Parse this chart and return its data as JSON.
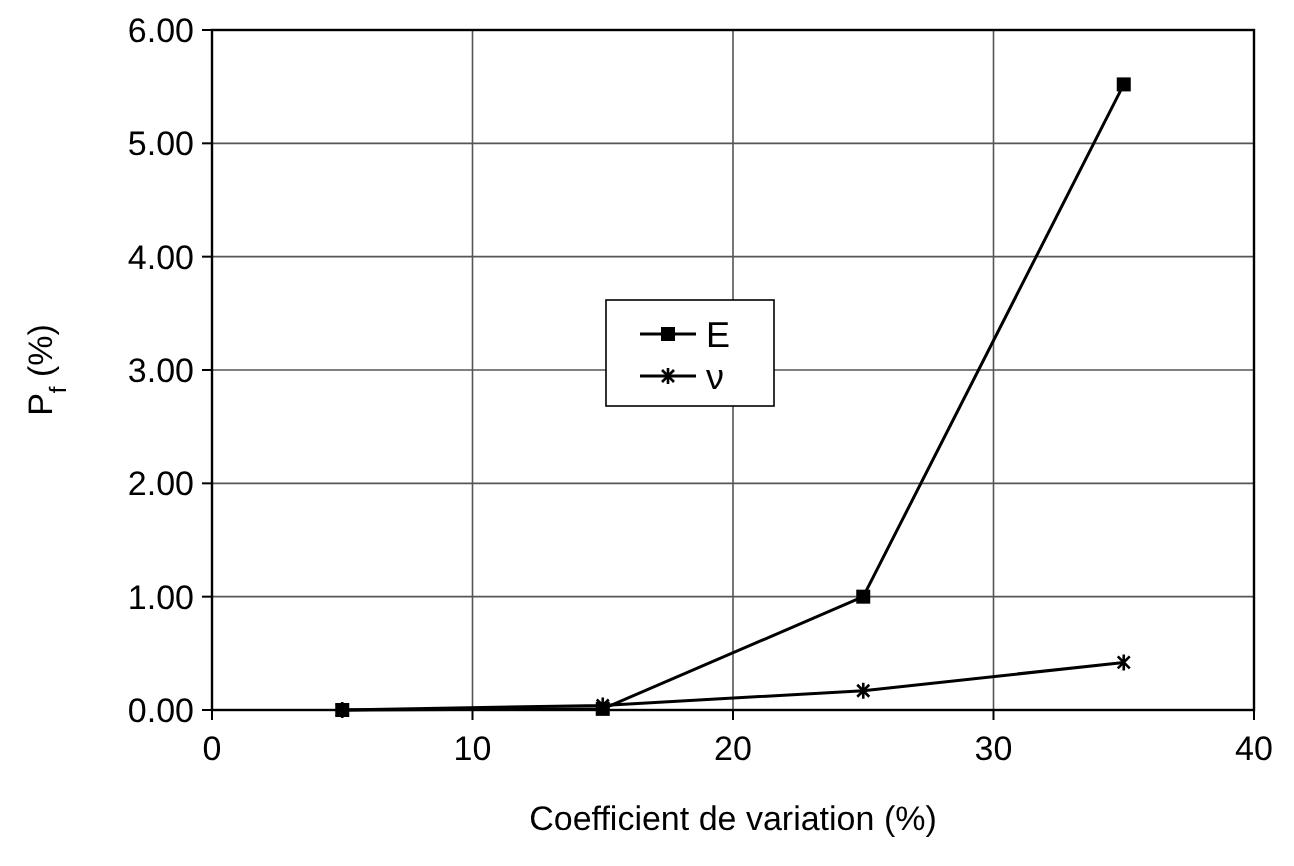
{
  "chart_data": {
    "type": "line",
    "xlabel": "Coefficient de variation (%)",
    "ylabel": "P$_{f}$ (%)",
    "x": [
      5,
      15,
      25,
      35
    ],
    "series": [
      {
        "name": "E",
        "color": "#000000",
        "marker": "square",
        "values": [
          0,
          0.01,
          1.0,
          5.52
        ]
      },
      {
        "name": "ν",
        "color": "#000000",
        "marker": "cross",
        "values": [
          0,
          0.04,
          0.17,
          0.42
        ]
      }
    ],
    "xlim": [
      0,
      40
    ],
    "xticks": [
      0,
      10,
      20,
      30,
      40
    ],
    "ylim": [
      0,
      6
    ],
    "yticks": [
      {
        "value": 0,
        "label": "0.00"
      },
      {
        "value": 1,
        "label": "1.00"
      },
      {
        "value": 2,
        "label": "2.00"
      },
      {
        "value": 3,
        "label": "3.00"
      },
      {
        "value": 4,
        "label": "4.00"
      },
      {
        "value": 5,
        "label": "5.00"
      },
      {
        "value": 6,
        "label": "6.00"
      }
    ],
    "grid": true,
    "legend": "center",
    "line_style": "solid"
  }
}
